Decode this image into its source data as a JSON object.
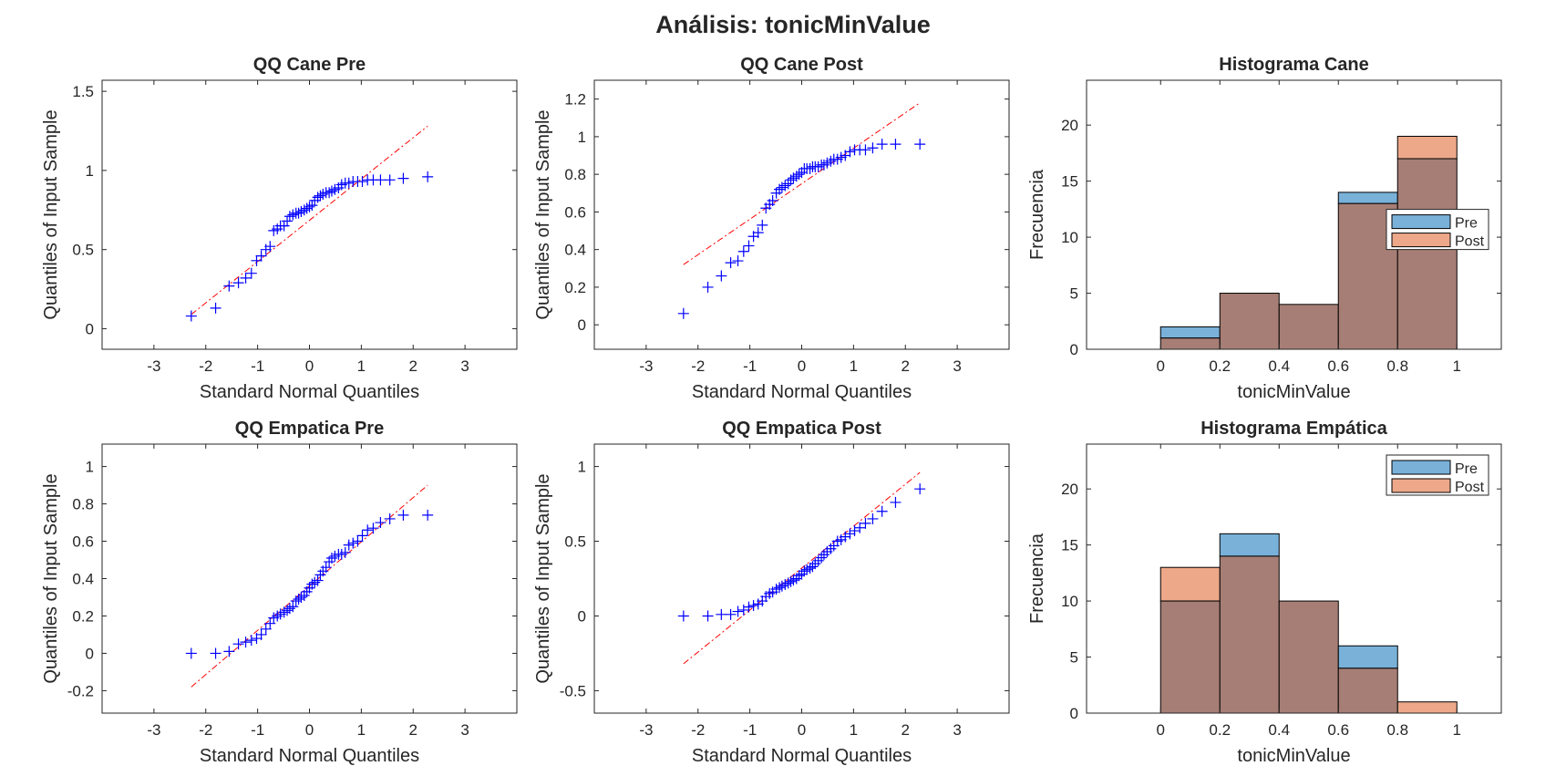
{
  "figure": {
    "title": "Análisis: tonicMinValue"
  },
  "chart_data": [
    {
      "type": "scatter",
      "title": "QQ Cane Pre",
      "xlabel": "Standard Normal Quantiles",
      "ylabel": "Quantiles of Input Sample",
      "xlim": [
        -4,
        4
      ],
      "ylim": [
        -0.13,
        1.57
      ],
      "xticks": [
        -3,
        -2,
        -1,
        0,
        1,
        2,
        3
      ],
      "yticks": [
        0,
        0.5,
        1,
        1.5
      ],
      "ytick_labels": [
        "0",
        "0.5",
        "1",
        "1.5"
      ],
      "ref_line": {
        "x": [
          -2.28,
          2.28
        ],
        "y": [
          0.09,
          1.28
        ]
      },
      "x": [
        -2.28,
        -1.81,
        -1.55,
        -1.37,
        -1.23,
        -1.12,
        -1.02,
        -0.93,
        -0.84,
        -0.76,
        -0.69,
        -0.62,
        -0.56,
        -0.49,
        -0.43,
        -0.38,
        -0.32,
        -0.26,
        -0.21,
        -0.16,
        -0.1,
        -0.05,
        0.0,
        0.05,
        0.1,
        0.16,
        0.21,
        0.26,
        0.32,
        0.38,
        0.43,
        0.49,
        0.56,
        0.62,
        0.69,
        0.76,
        0.84,
        0.93,
        1.02,
        1.12,
        1.23,
        1.37,
        1.55,
        1.81,
        2.28
      ],
      "y": [
        0.08,
        0.13,
        0.27,
        0.29,
        0.32,
        0.35,
        0.43,
        0.46,
        0.5,
        0.52,
        0.62,
        0.63,
        0.65,
        0.65,
        0.68,
        0.71,
        0.72,
        0.73,
        0.73,
        0.74,
        0.75,
        0.76,
        0.77,
        0.78,
        0.81,
        0.83,
        0.84,
        0.85,
        0.86,
        0.86,
        0.87,
        0.88,
        0.89,
        0.91,
        0.92,
        0.92,
        0.93,
        0.93,
        0.93,
        0.94,
        0.94,
        0.94,
        0.94,
        0.95,
        0.96
      ]
    },
    {
      "type": "scatter",
      "title": "QQ Cane Post",
      "xlabel": "Standard Normal Quantiles",
      "ylabel": "Quantiles of Input Sample",
      "xlim": [
        -4,
        4
      ],
      "ylim": [
        -0.13,
        1.3
      ],
      "xticks": [
        -3,
        -2,
        -1,
        0,
        1,
        2,
        3
      ],
      "yticks": [
        0,
        0.2,
        0.4,
        0.6,
        0.8,
        1,
        1.2
      ],
      "ytick_labels": [
        "0",
        "0.2",
        "0.4",
        "0.6",
        "0.8",
        "1",
        "1.2"
      ],
      "ref_line": {
        "x": [
          -2.28,
          2.28
        ],
        "y": [
          0.32,
          1.18
        ]
      },
      "x": [
        -2.28,
        -1.81,
        -1.55,
        -1.37,
        -1.23,
        -1.12,
        -1.02,
        -0.93,
        -0.84,
        -0.76,
        -0.69,
        -0.62,
        -0.56,
        -0.49,
        -0.43,
        -0.38,
        -0.32,
        -0.26,
        -0.21,
        -0.16,
        -0.1,
        -0.05,
        0.0,
        0.05,
        0.1,
        0.16,
        0.21,
        0.26,
        0.32,
        0.38,
        0.43,
        0.49,
        0.56,
        0.62,
        0.69,
        0.76,
        0.84,
        0.93,
        1.02,
        1.12,
        1.23,
        1.37,
        1.55,
        1.81,
        2.28
      ],
      "y": [
        0.06,
        0.2,
        0.26,
        0.33,
        0.34,
        0.39,
        0.42,
        0.47,
        0.49,
        0.53,
        0.62,
        0.64,
        0.66,
        0.7,
        0.72,
        0.73,
        0.74,
        0.75,
        0.77,
        0.78,
        0.79,
        0.8,
        0.81,
        0.83,
        0.83,
        0.83,
        0.84,
        0.84,
        0.84,
        0.85,
        0.85,
        0.86,
        0.87,
        0.88,
        0.88,
        0.89,
        0.9,
        0.92,
        0.93,
        0.93,
        0.93,
        0.94,
        0.96,
        0.96,
        0.96
      ]
    },
    {
      "type": "bar",
      "title": "Histograma Cane",
      "xlabel": "tonicMinValue",
      "ylabel": "Frecuencia",
      "bin_edges": [
        0,
        0.2,
        0.4,
        0.6,
        0.8,
        1
      ],
      "xlim": [
        -0.25,
        1.15
      ],
      "ylim": [
        0,
        24
      ],
      "xticks": [
        0,
        0.2,
        0.4,
        0.6,
        0.8,
        1
      ],
      "xtick_labels": [
        "0",
        "0.2",
        "0.4",
        "0.6",
        "0.8",
        "1"
      ],
      "yticks": [
        0,
        5,
        10,
        15,
        20
      ],
      "series": [
        {
          "name": "Pre",
          "values": [
            2,
            5,
            4,
            14,
            17
          ],
          "color": "#0072BD"
        },
        {
          "name": "Post",
          "values": [
            1,
            5,
            4,
            13,
            19
          ],
          "color": "#D95319"
        }
      ],
      "legend_position": "middle-right"
    },
    {
      "type": "scatter",
      "title": "QQ Empatica Pre",
      "xlabel": "Standard Normal Quantiles",
      "ylabel": "Quantiles of Input Sample",
      "xlim": [
        -4,
        4
      ],
      "ylim": [
        -0.32,
        1.12
      ],
      "xticks": [
        -3,
        -2,
        -1,
        0,
        1,
        2,
        3
      ],
      "yticks": [
        -0.2,
        0,
        0.2,
        0.4,
        0.6,
        0.8,
        1
      ],
      "ytick_labels": [
        "-0.2",
        "0",
        "0.2",
        "0.4",
        "0.6",
        "0.8",
        "1"
      ],
      "ref_line": {
        "x": [
          -2.28,
          2.28
        ],
        "y": [
          -0.18,
          0.9
        ]
      },
      "x": [
        -2.28,
        -1.81,
        -1.55,
        -1.37,
        -1.23,
        -1.12,
        -1.02,
        -0.93,
        -0.84,
        -0.76,
        -0.69,
        -0.62,
        -0.56,
        -0.49,
        -0.43,
        -0.38,
        -0.32,
        -0.26,
        -0.21,
        -0.16,
        -0.1,
        -0.05,
        0.0,
        0.05,
        0.1,
        0.16,
        0.21,
        0.26,
        0.32,
        0.38,
        0.43,
        0.49,
        0.56,
        0.62,
        0.69,
        0.76,
        0.84,
        0.93,
        1.02,
        1.12,
        1.23,
        1.37,
        1.55,
        1.81,
        2.28
      ],
      "y": [
        0.0,
        0.0,
        0.01,
        0.05,
        0.06,
        0.07,
        0.08,
        0.1,
        0.13,
        0.16,
        0.19,
        0.2,
        0.21,
        0.22,
        0.23,
        0.24,
        0.25,
        0.28,
        0.29,
        0.3,
        0.31,
        0.33,
        0.35,
        0.37,
        0.38,
        0.39,
        0.42,
        0.44,
        0.46,
        0.49,
        0.51,
        0.52,
        0.53,
        0.53,
        0.54,
        0.58,
        0.59,
        0.6,
        0.63,
        0.66,
        0.67,
        0.7,
        0.72,
        0.74,
        0.74
      ]
    },
    {
      "type": "scatter",
      "title": "QQ Empatica Post",
      "xlabel": "Standard Normal Quantiles",
      "ylabel": "Quantiles of Input Sample",
      "xlim": [
        -4,
        4
      ],
      "ylim": [
        -0.65,
        1.15
      ],
      "xticks": [
        -3,
        -2,
        -1,
        0,
        1,
        2,
        3
      ],
      "yticks": [
        -0.5,
        0,
        0.5,
        1
      ],
      "ytick_labels": [
        "-0.5",
        "0",
        "0.5",
        "1"
      ],
      "ref_line": {
        "x": [
          -2.28,
          2.28
        ],
        "y": [
          -0.32,
          0.96
        ]
      },
      "x": [
        -2.28,
        -1.81,
        -1.55,
        -1.37,
        -1.23,
        -1.12,
        -1.02,
        -0.93,
        -0.84,
        -0.76,
        -0.69,
        -0.62,
        -0.56,
        -0.49,
        -0.43,
        -0.38,
        -0.32,
        -0.26,
        -0.21,
        -0.16,
        -0.1,
        -0.05,
        0.0,
        0.05,
        0.1,
        0.16,
        0.21,
        0.26,
        0.32,
        0.38,
        0.43,
        0.49,
        0.56,
        0.62,
        0.69,
        0.76,
        0.84,
        0.93,
        1.02,
        1.12,
        1.23,
        1.37,
        1.55,
        1.81,
        2.28
      ],
      "y": [
        0.0,
        0.0,
        0.01,
        0.01,
        0.03,
        0.04,
        0.06,
        0.07,
        0.08,
        0.1,
        0.13,
        0.15,
        0.16,
        0.18,
        0.19,
        0.2,
        0.21,
        0.22,
        0.23,
        0.24,
        0.25,
        0.27,
        0.28,
        0.3,
        0.31,
        0.32,
        0.33,
        0.35,
        0.37,
        0.39,
        0.41,
        0.43,
        0.45,
        0.47,
        0.5,
        0.51,
        0.53,
        0.55,
        0.57,
        0.59,
        0.62,
        0.65,
        0.7,
        0.76,
        0.85
      ]
    },
    {
      "type": "bar",
      "title": "Histograma Empática",
      "xlabel": "tonicMinValue",
      "ylabel": "Frecuencia",
      "bin_edges": [
        0,
        0.2,
        0.4,
        0.6,
        0.8,
        1
      ],
      "xlim": [
        -0.25,
        1.15
      ],
      "ylim": [
        0,
        24
      ],
      "xticks": [
        0,
        0.2,
        0.4,
        0.6,
        0.8,
        1
      ],
      "xtick_labels": [
        "0",
        "0.2",
        "0.4",
        "0.6",
        "0.8",
        "1"
      ],
      "yticks": [
        0,
        5,
        10,
        15,
        20
      ],
      "series": [
        {
          "name": "Pre",
          "values": [
            10,
            16,
            10,
            6,
            0
          ],
          "color": "#0072BD"
        },
        {
          "name": "Post",
          "values": [
            13,
            14,
            10,
            4,
            1
          ],
          "color": "#D95319"
        }
      ],
      "legend_position": "top-right"
    }
  ]
}
